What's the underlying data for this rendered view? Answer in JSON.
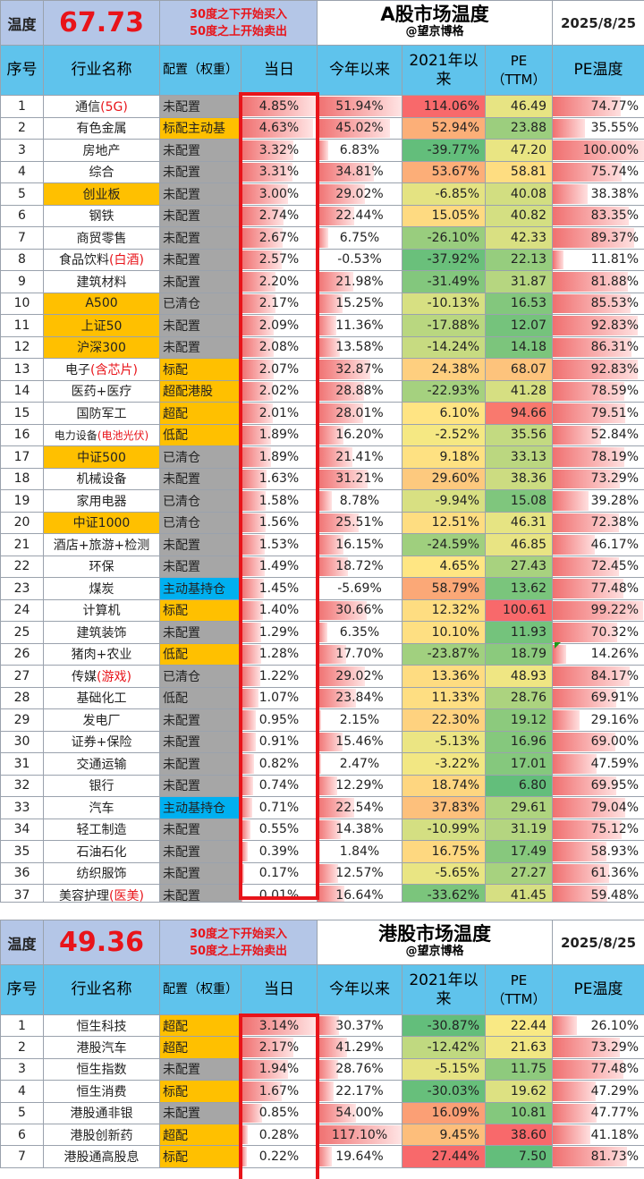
{
  "a_share": {
    "label": "温度",
    "value": "67.73",
    "rule_line1": "30度之下开始买入",
    "rule_line2": "50度之上开始卖出",
    "title": "A股市场温度",
    "author": "@望京博格",
    "date": "2025/8/25",
    "headers": {
      "no": "序号",
      "name": "行业名称",
      "alloc": "配置（权重）",
      "day": "当日",
      "ytd": "今年以来",
      "since2021": "2021年以来",
      "pe": "PE（TTM）",
      "pe_temp": "PE温度"
    },
    "rows": [
      {
        "no": "1",
        "name": "通信",
        "name_red": "(5G)",
        "name_hl": false,
        "alloc": "未配置",
        "alloc_style": "gray",
        "day": "4.85%",
        "ytd": "51.94%",
        "since2021": "114.06%",
        "pe": "46.49",
        "pe_temp": "74.77%"
      },
      {
        "no": "2",
        "name": "有色金属",
        "name_red": "",
        "name_hl": false,
        "alloc": "标配主动基",
        "alloc_style": "orange",
        "day": "4.63%",
        "ytd": "45.02%",
        "since2021": "52.94%",
        "pe": "23.88",
        "pe_temp": "35.55%"
      },
      {
        "no": "3",
        "name": "房地产",
        "name_red": "",
        "name_hl": false,
        "alloc": "未配置",
        "alloc_style": "gray",
        "day": "3.32%",
        "ytd": "6.83%",
        "since2021": "-39.77%",
        "pe": "47.20",
        "pe_temp": "100.00%"
      },
      {
        "no": "4",
        "name": "综合",
        "name_red": "",
        "name_hl": false,
        "alloc": "未配置",
        "alloc_style": "gray",
        "day": "3.31%",
        "ytd": "34.81%",
        "since2021": "53.67%",
        "pe": "58.81",
        "pe_temp": "75.74%"
      },
      {
        "no": "5",
        "name": "创业板",
        "name_red": "",
        "name_hl": true,
        "alloc": "未配置",
        "alloc_style": "gray",
        "day": "3.00%",
        "ytd": "29.02%",
        "since2021": "-6.85%",
        "pe": "40.08",
        "pe_temp": "38.38%"
      },
      {
        "no": "6",
        "name": "钢铁",
        "name_red": "",
        "name_hl": false,
        "alloc": "未配置",
        "alloc_style": "gray",
        "day": "2.74%",
        "ytd": "22.44%",
        "since2021": "15.05%",
        "pe": "40.82",
        "pe_temp": "83.35%"
      },
      {
        "no": "7",
        "name": "商贸零售",
        "name_red": "",
        "name_hl": false,
        "alloc": "未配置",
        "alloc_style": "gray",
        "day": "2.67%",
        "ytd": "6.75%",
        "since2021": "-26.10%",
        "pe": "42.33",
        "pe_temp": "89.37%"
      },
      {
        "no": "8",
        "name": "食品饮料",
        "name_red": "(白酒)",
        "name_hl": false,
        "alloc": "未配置",
        "alloc_style": "gray",
        "day": "2.57%",
        "ytd": "-0.53%",
        "since2021": "-37.92%",
        "pe": "22.13",
        "pe_temp": "11.81%"
      },
      {
        "no": "9",
        "name": "建筑材料",
        "name_red": "",
        "name_hl": false,
        "alloc": "未配置",
        "alloc_style": "gray",
        "day": "2.20%",
        "ytd": "21.98%",
        "since2021": "-31.49%",
        "pe": "31.87",
        "pe_temp": "81.88%"
      },
      {
        "no": "10",
        "name": "A500",
        "name_red": "",
        "name_hl": true,
        "alloc": "已清仓",
        "alloc_style": "gray",
        "day": "2.17%",
        "ytd": "15.25%",
        "since2021": "-10.13%",
        "pe": "16.53",
        "pe_temp": "85.53%"
      },
      {
        "no": "11",
        "name": "上证50",
        "name_red": "",
        "name_hl": true,
        "alloc": "未配置",
        "alloc_style": "gray",
        "day": "2.09%",
        "ytd": "11.36%",
        "since2021": "-17.88%",
        "pe": "12.07",
        "pe_temp": "92.83%"
      },
      {
        "no": "12",
        "name": "沪深300",
        "name_red": "",
        "name_hl": true,
        "alloc": "未配置",
        "alloc_style": "gray",
        "day": "2.08%",
        "ytd": "13.58%",
        "since2021": "-14.24%",
        "pe": "14.18",
        "pe_temp": "86.31%"
      },
      {
        "no": "13",
        "name": "电子",
        "name_red": "(含芯片)",
        "name_hl": false,
        "alloc": "标配",
        "alloc_style": "orange",
        "day": "2.07%",
        "ytd": "32.87%",
        "since2021": "24.38%",
        "pe": "68.07",
        "pe_temp": "92.83%"
      },
      {
        "no": "14",
        "name": "医药+医疗",
        "name_red": "",
        "name_hl": false,
        "alloc": "超配港股",
        "alloc_style": "orange",
        "day": "2.02%",
        "ytd": "28.88%",
        "since2021": "-22.93%",
        "pe": "41.28",
        "pe_temp": "78.59%"
      },
      {
        "no": "15",
        "name": "国防军工",
        "name_red": "",
        "name_hl": false,
        "alloc": "超配",
        "alloc_style": "orange",
        "day": "2.01%",
        "ytd": "28.01%",
        "since2021": "6.10%",
        "pe": "94.66",
        "pe_temp": "79.51%"
      },
      {
        "no": "16",
        "name": "电力设备",
        "name_red": "(电池光伏)",
        "name_hl": false,
        "small": true,
        "alloc": "低配",
        "alloc_style": "orange",
        "day": "1.89%",
        "ytd": "16.20%",
        "since2021": "-2.52%",
        "pe": "35.56",
        "pe_temp": "52.84%"
      },
      {
        "no": "17",
        "name": "中证500",
        "name_red": "",
        "name_hl": true,
        "alloc": "已清仓",
        "alloc_style": "gray",
        "day": "1.89%",
        "ytd": "21.41%",
        "since2021": "9.18%",
        "pe": "33.13",
        "pe_temp": "78.19%"
      },
      {
        "no": "18",
        "name": "机械设备",
        "name_red": "",
        "name_hl": false,
        "alloc": "未配置",
        "alloc_style": "gray",
        "day": "1.63%",
        "ytd": "31.21%",
        "since2021": "29.60%",
        "pe": "38.36",
        "pe_temp": "73.29%"
      },
      {
        "no": "19",
        "name": "家用电器",
        "name_red": "",
        "name_hl": false,
        "alloc": "已清仓",
        "alloc_style": "gray",
        "day": "1.58%",
        "ytd": "8.78%",
        "since2021": "-9.94%",
        "pe": "15.08",
        "pe_temp": "39.28%"
      },
      {
        "no": "20",
        "name": "中证1000",
        "name_red": "",
        "name_hl": true,
        "alloc": "已清仓",
        "alloc_style": "gray",
        "day": "1.56%",
        "ytd": "25.51%",
        "since2021": "12.51%",
        "pe": "46.31",
        "pe_temp": "72.38%"
      },
      {
        "no": "21",
        "name": "酒店+旅游+检测",
        "name_red": "",
        "name_hl": false,
        "alloc": "未配置",
        "alloc_style": "gray",
        "day": "1.53%",
        "ytd": "16.15%",
        "since2021": "-24.59%",
        "pe": "46.85",
        "pe_temp": "46.17%"
      },
      {
        "no": "22",
        "name": "环保",
        "name_red": "",
        "name_hl": false,
        "alloc": "未配置",
        "alloc_style": "gray",
        "day": "1.49%",
        "ytd": "18.72%",
        "since2021": "4.65%",
        "pe": "27.43",
        "pe_temp": "72.45%"
      },
      {
        "no": "23",
        "name": "煤炭",
        "name_red": "",
        "name_hl": false,
        "alloc": "主动基持仓",
        "alloc_style": "blue",
        "day": "1.45%",
        "ytd": "-5.69%",
        "since2021": "58.79%",
        "pe": "13.62",
        "pe_temp": "77.48%"
      },
      {
        "no": "24",
        "name": "计算机",
        "name_red": "",
        "name_hl": false,
        "alloc": "标配",
        "alloc_style": "orange",
        "day": "1.40%",
        "ytd": "30.66%",
        "since2021": "12.32%",
        "pe": "100.61",
        "pe_temp": "99.22%"
      },
      {
        "no": "25",
        "name": "建筑装饰",
        "name_red": "",
        "name_hl": false,
        "alloc": "未配置",
        "alloc_style": "gray",
        "day": "1.29%",
        "ytd": "6.35%",
        "since2021": "10.10%",
        "pe": "11.93",
        "pe_temp": "70.32%"
      },
      {
        "no": "26",
        "name": "猪肉+农业",
        "name_red": "",
        "name_hl": false,
        "alloc": "低配",
        "alloc_style": "orange",
        "day": "1.28%",
        "ytd": "17.70%",
        "since2021": "-23.87%",
        "pe": "18.79",
        "pe_temp": "14.26%"
      },
      {
        "no": "27",
        "name": "传媒",
        "name_red": "(游戏)",
        "name_hl": false,
        "alloc": "已清仓",
        "alloc_style": "gray",
        "day": "1.22%",
        "ytd": "29.02%",
        "since2021": "13.36%",
        "pe": "48.93",
        "pe_temp": "84.17%"
      },
      {
        "no": "28",
        "name": "基础化工",
        "name_red": "",
        "name_hl": false,
        "alloc": "低配",
        "alloc_style": "gray",
        "day": "1.07%",
        "ytd": "23.84%",
        "since2021": "11.33%",
        "pe": "28.76",
        "pe_temp": "69.91%"
      },
      {
        "no": "29",
        "name": "发电厂",
        "name_red": "",
        "name_hl": false,
        "alloc": "未配置",
        "alloc_style": "gray",
        "day": "0.95%",
        "ytd": "2.15%",
        "since2021": "22.30%",
        "pe": "19.12",
        "pe_temp": "29.16%"
      },
      {
        "no": "30",
        "name": "证券+保险",
        "name_red": "",
        "name_hl": false,
        "alloc": "未配置",
        "alloc_style": "gray",
        "day": "0.91%",
        "ytd": "15.46%",
        "since2021": "-5.13%",
        "pe": "16.96",
        "pe_temp": "69.00%"
      },
      {
        "no": "31",
        "name": "交通运输",
        "name_red": "",
        "name_hl": false,
        "alloc": "未配置",
        "alloc_style": "gray",
        "day": "0.82%",
        "ytd": "2.47%",
        "since2021": "-3.22%",
        "pe": "17.01",
        "pe_temp": "47.59%"
      },
      {
        "no": "32",
        "name": "银行",
        "name_red": "",
        "name_hl": false,
        "alloc": "未配置",
        "alloc_style": "gray",
        "day": "0.74%",
        "ytd": "12.29%",
        "since2021": "18.74%",
        "pe": "6.80",
        "pe_temp": "69.95%"
      },
      {
        "no": "33",
        "name": "汽车",
        "name_red": "",
        "name_hl": false,
        "alloc": "主动基持仓",
        "alloc_style": "blue",
        "day": "0.71%",
        "ytd": "22.54%",
        "since2021": "37.83%",
        "pe": "29.61",
        "pe_temp": "79.04%"
      },
      {
        "no": "34",
        "name": "轻工制造",
        "name_red": "",
        "name_hl": false,
        "alloc": "未配置",
        "alloc_style": "gray",
        "day": "0.55%",
        "ytd": "14.38%",
        "since2021": "-10.99%",
        "pe": "31.19",
        "pe_temp": "75.12%"
      },
      {
        "no": "35",
        "name": "石油石化",
        "name_red": "",
        "name_hl": false,
        "alloc": "未配置",
        "alloc_style": "gray",
        "day": "0.39%",
        "ytd": "1.84%",
        "since2021": "16.75%",
        "pe": "17.49",
        "pe_temp": "58.93%"
      },
      {
        "no": "36",
        "name": "纺织服饰",
        "name_red": "",
        "name_hl": false,
        "alloc": "未配置",
        "alloc_style": "gray",
        "day": "0.17%",
        "ytd": "12.57%",
        "since2021": "-5.65%",
        "pe": "27.27",
        "pe_temp": "61.36%"
      },
      {
        "no": "37",
        "name": "美容护理",
        "name_red": "(医美)",
        "name_hl": false,
        "alloc": "未配置",
        "alloc_style": "gray",
        "day": "0.01%",
        "ytd": "16.64%",
        "since2021": "-33.62%",
        "pe": "41.45",
        "pe_temp": "59.48%"
      }
    ]
  },
  "hk": {
    "label": "温度",
    "value": "49.36",
    "rule_line1": "30度之下开始买入",
    "rule_line2": "50度之上开始卖出",
    "title": "港股市场温度",
    "author": "@望京博格",
    "date": "2025/8/25",
    "headers": {
      "no": "序号",
      "name": "行业名称",
      "alloc": "配置（权重）",
      "day": "当日",
      "ytd": "今年以来",
      "since2021": "2021年以来",
      "pe": "PE（TTM）",
      "pe_temp": "PE温度"
    },
    "rows": [
      {
        "no": "1",
        "name": "恒生科技",
        "name_red": "",
        "name_hl": false,
        "alloc": "超配",
        "alloc_style": "orange",
        "day": "3.14%",
        "ytd": "30.37%",
        "since2021": "-30.87%",
        "pe": "22.44",
        "pe_temp": "26.10%"
      },
      {
        "no": "2",
        "name": "港股汽车",
        "name_red": "",
        "name_hl": false,
        "alloc": "超配",
        "alloc_style": "orange",
        "day": "2.17%",
        "ytd": "41.29%",
        "since2021": "-12.42%",
        "pe": "21.63",
        "pe_temp": "73.29%"
      },
      {
        "no": "3",
        "name": "恒生指数",
        "name_red": "",
        "name_hl": false,
        "alloc": "未配置",
        "alloc_style": "gray",
        "day": "1.94%",
        "ytd": "28.76%",
        "since2021": "-5.15%",
        "pe": "11.75",
        "pe_temp": "77.48%"
      },
      {
        "no": "4",
        "name": "恒生消费",
        "name_red": "",
        "name_hl": false,
        "alloc": "标配",
        "alloc_style": "orange",
        "day": "1.67%",
        "ytd": "22.17%",
        "since2021": "-30.03%",
        "pe": "19.62",
        "pe_temp": "47.29%"
      },
      {
        "no": "5",
        "name": "港股通非银",
        "name_red": "",
        "name_hl": false,
        "alloc": "未配置",
        "alloc_style": "gray",
        "day": "0.85%",
        "ytd": "54.00%",
        "since2021": "16.09%",
        "pe": "10.81",
        "pe_temp": "47.77%"
      },
      {
        "no": "6",
        "name": "港股创新药",
        "name_red": "",
        "name_hl": false,
        "alloc": "超配",
        "alloc_style": "orange",
        "day": "0.28%",
        "ytd": "117.10%",
        "since2021": "9.45%",
        "pe": "38.60",
        "pe_temp": "41.18%"
      },
      {
        "no": "7",
        "name": "港股通高股息",
        "name_red": "",
        "name_hl": false,
        "alloc": "标配",
        "alloc_style": "orange",
        "day": "0.22%",
        "ytd": "19.64%",
        "since2021": "27.44%",
        "pe": "7.50",
        "pe_temp": "81.73%"
      }
    ]
  },
  "colors": {
    "header_blue": "#5fc3ec",
    "top_band": "#b4c6e7",
    "accent_red": "#e8141a",
    "highlight_orange": "#ffc000",
    "alloc_gray": "#a6a6a6",
    "alloc_blue": "#00b0f0"
  }
}
